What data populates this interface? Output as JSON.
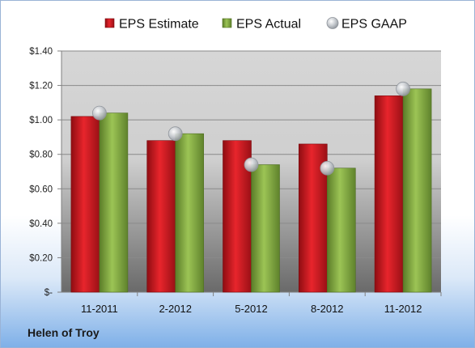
{
  "chart_data": {
    "type": "bar",
    "categories": [
      "11-2011",
      "2-2012",
      "5-2012",
      "8-2012",
      "11-2012"
    ],
    "series": [
      {
        "name": "EPS Estimate",
        "values": [
          1.02,
          0.88,
          0.88,
          0.86,
          1.14
        ],
        "color": "#c8161d",
        "kind": "bar"
      },
      {
        "name": "EPS Actual",
        "values": [
          1.04,
          0.92,
          0.74,
          0.72,
          1.18
        ],
        "color": "#7ba23f",
        "kind": "bar"
      },
      {
        "name": "EPS GAAP",
        "values": [
          1.04,
          0.92,
          0.74,
          0.72,
          1.18
        ],
        "color": "#b8bcc2",
        "kind": "marker"
      }
    ],
    "ylim": [
      0,
      1.4
    ],
    "ytick_values": [
      0,
      0.2,
      0.4,
      0.6,
      0.8,
      1.0,
      1.2,
      1.4
    ],
    "ytick_labels": [
      "$-",
      "$0.20",
      "$0.40",
      "$0.60",
      "$0.80",
      "$1.00",
      "$1.20",
      "$1.40"
    ],
    "grid": true,
    "legend_position": "top"
  },
  "company": "Helen of Troy"
}
